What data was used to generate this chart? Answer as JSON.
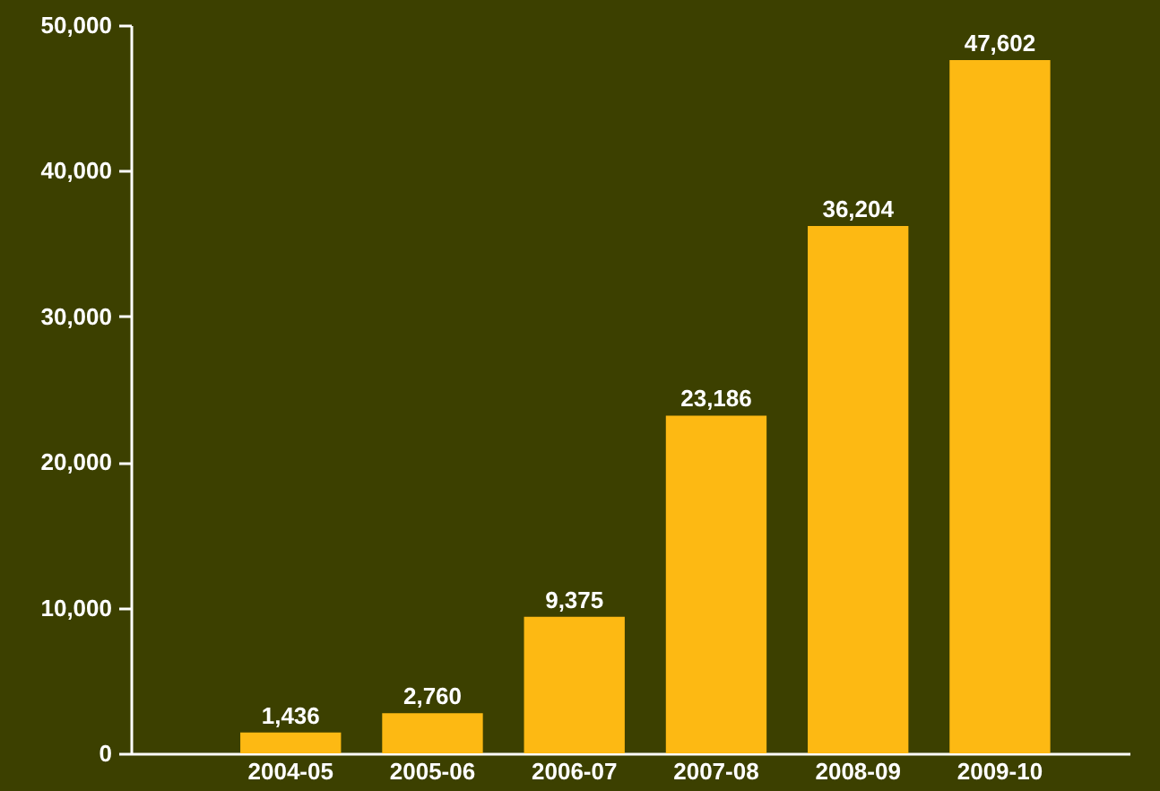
{
  "chart_data": {
    "type": "bar",
    "categories": [
      "2004-05",
      "2005-06",
      "2006-07",
      "2007-08",
      "2008-09",
      "2009-10"
    ],
    "values": [
      1436,
      2760,
      9375,
      23186,
      36204,
      47602
    ],
    "color": "#fdb913",
    "ylim": [
      0,
      50000
    ],
    "yticks": [
      {
        "value": 0,
        "label": "0"
      },
      {
        "value": 10000,
        "label": "10,000"
      },
      {
        "value": 20000,
        "label": "20,000"
      },
      {
        "value": 30000,
        "label": "30,000"
      },
      {
        "value": 40000,
        "label": "40,000"
      },
      {
        "value": 50000,
        "label": "50,000"
      }
    ],
    "value_labels": [
      "1,436",
      "2,760",
      "9,375",
      "23,186",
      "36,204",
      "47,602"
    ],
    "grid": false
  }
}
